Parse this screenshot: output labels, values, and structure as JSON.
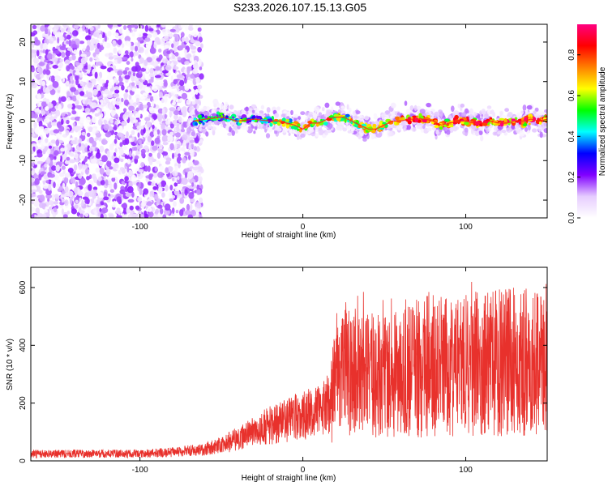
{
  "chart_data": [
    {
      "type": "heatmap",
      "title": "S233.2026.107.15.13.G05",
      "xlabel": "Height of straight line (km)",
      "ylabel": "Frequency (Hz)",
      "xlim": [
        -167,
        150
      ],
      "ylim": [
        -24.5,
        24.5
      ],
      "xticks": [
        -100,
        0,
        100
      ],
      "yticks": [
        -20,
        -10,
        0,
        10,
        20
      ],
      "colorbar": {
        "label": "Normalized spectral amplitude",
        "range": [
          0,
          0.95
        ],
        "ticks": [
          0.0,
          0.2,
          0.4,
          0.6,
          0.8
        ],
        "stops": [
          "#ffffff",
          "#e6ccff",
          "#8000ff",
          "#0000ff",
          "#00ffff",
          "#00ff00",
          "#ffff00",
          "#ff8000",
          "#ff0000",
          "#ff0080"
        ]
      },
      "ridge_track": {
        "x": [
          -67,
          -60,
          -50,
          -40,
          -30,
          -20,
          -15,
          -10,
          -5,
          0,
          5,
          10,
          15,
          20,
          25,
          30,
          35,
          40,
          45,
          50,
          55,
          60,
          65,
          70,
          75,
          80,
          85,
          90,
          95,
          100,
          105,
          110,
          115,
          120,
          125,
          130,
          135,
          140,
          145,
          150
        ],
        "y": [
          0,
          0.5,
          1,
          0,
          0.5,
          0,
          0,
          -0.5,
          -1,
          -2,
          -0.5,
          -0.5,
          0.5,
          1,
          1,
          0,
          -1,
          -2,
          -2,
          -1,
          0,
          0,
          0.5,
          0.5,
          0.5,
          0,
          -1,
          -0.5,
          0,
          0,
          -0.5,
          -0.5,
          0,
          -0.5,
          -0.5,
          0,
          0,
          0.5,
          0,
          0.5
        ]
      }
    },
    {
      "type": "line",
      "title": "",
      "xlabel": "Height of straight line (km)",
      "ylabel": "SNR (10 * v/v)",
      "xlim": [
        -167,
        150
      ],
      "ylim": [
        0,
        670
      ],
      "xticks": [
        -100,
        0,
        100
      ],
      "yticks": [
        0,
        200,
        400,
        600
      ],
      "series": [
        {
          "name": "SNR",
          "color": "#e8312c",
          "x": [
            -167,
            -150,
            -140,
            -120,
            -100,
            -80,
            -70,
            -60,
            -50,
            -40,
            -30,
            -20,
            -10,
            0,
            10,
            17,
            20,
            25,
            30,
            40,
            50,
            60,
            70,
            80,
            90,
            100,
            110,
            120,
            130,
            140,
            150
          ],
          "y": [
            25,
            25,
            25,
            25,
            25,
            30,
            35,
            40,
            55,
            75,
            100,
            125,
            140,
            160,
            170,
            200,
            260,
            290,
            300,
            310,
            295,
            300,
            320,
            330,
            320,
            330,
            340,
            340,
            345,
            340,
            320
          ]
        }
      ]
    }
  ]
}
